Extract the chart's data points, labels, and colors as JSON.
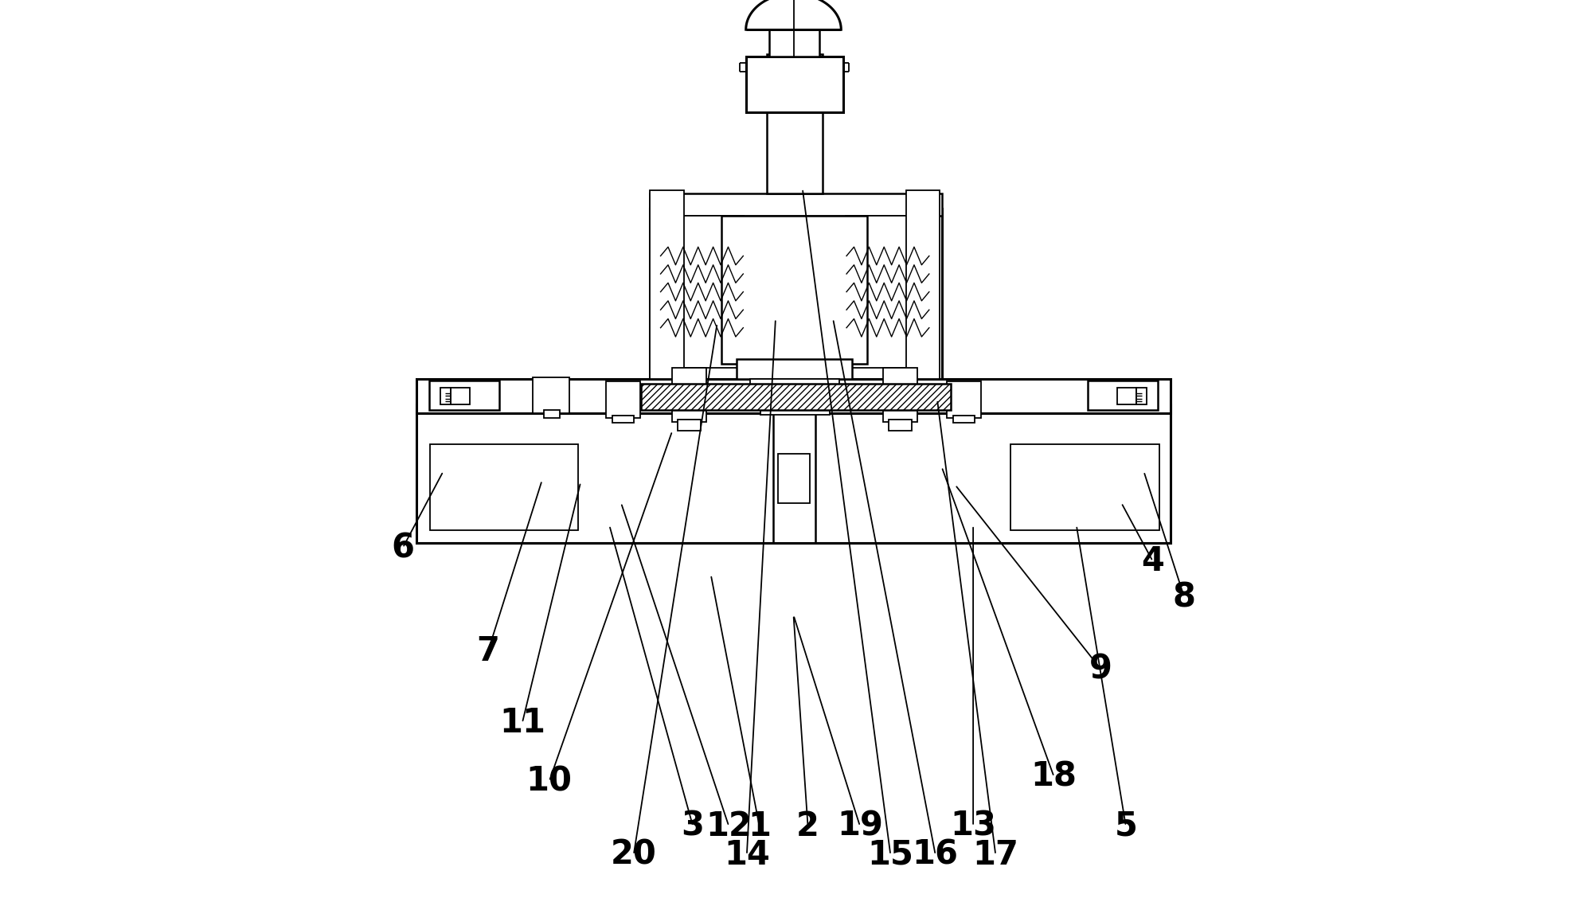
{
  "bg_color": "#ffffff",
  "line_color": "#000000",
  "fig_width": 19.93,
  "fig_height": 11.28,
  "label_fontsize": 30,
  "font_weight": "bold",
  "leaders": {
    "1": {
      "lpos": [
        0.462,
        0.08
      ],
      "tpos": [
        0.408,
        0.36
      ]
    },
    "2": {
      "lpos": [
        0.516,
        0.08
      ],
      "tpos": [
        0.5,
        0.315
      ]
    },
    "3": {
      "lpos": [
        0.388,
        0.08
      ],
      "tpos": [
        0.295,
        0.415
      ]
    },
    "4": {
      "lpos": [
        0.9,
        0.375
      ],
      "tpos": [
        0.865,
        0.44
      ]
    },
    "5": {
      "lpos": [
        0.87,
        0.08
      ],
      "tpos": [
        0.815,
        0.415
      ]
    },
    "6": {
      "lpos": [
        0.065,
        0.39
      ],
      "tpos": [
        0.11,
        0.475
      ]
    },
    "7": {
      "lpos": [
        0.16,
        0.275
      ],
      "tpos": [
        0.22,
        0.465
      ]
    },
    "8": {
      "lpos": [
        0.935,
        0.335
      ],
      "tpos": [
        0.89,
        0.475
      ]
    },
    "9": {
      "lpos": [
        0.842,
        0.255
      ],
      "tpos": [
        0.68,
        0.46
      ]
    },
    "10": {
      "lpos": [
        0.228,
        0.13
      ],
      "tpos": [
        0.365,
        0.52
      ]
    },
    "11": {
      "lpos": [
        0.198,
        0.195
      ],
      "tpos": [
        0.263,
        0.463
      ]
    },
    "12": {
      "lpos": [
        0.428,
        0.08
      ],
      "tpos": [
        0.308,
        0.44
      ]
    },
    "13": {
      "lpos": [
        0.7,
        0.08
      ],
      "tpos": [
        0.7,
        0.415
      ]
    },
    "14": {
      "lpos": [
        0.448,
        0.048
      ],
      "tpos": [
        0.48,
        0.645
      ]
    },
    "15": {
      "lpos": [
        0.608,
        0.048
      ],
      "tpos": [
        0.51,
        0.79
      ]
    },
    "16": {
      "lpos": [
        0.658,
        0.048
      ],
      "tpos": [
        0.544,
        0.645
      ]
    },
    "17": {
      "lpos": [
        0.725,
        0.048
      ],
      "tpos": [
        0.66,
        0.555
      ]
    },
    "18": {
      "lpos": [
        0.79,
        0.135
      ],
      "tpos": [
        0.665,
        0.48
      ]
    },
    "19": {
      "lpos": [
        0.574,
        0.08
      ],
      "tpos": [
        0.5,
        0.315
      ]
    },
    "20": {
      "lpos": [
        0.322,
        0.048
      ],
      "tpos": [
        0.415,
        0.64
      ]
    }
  }
}
